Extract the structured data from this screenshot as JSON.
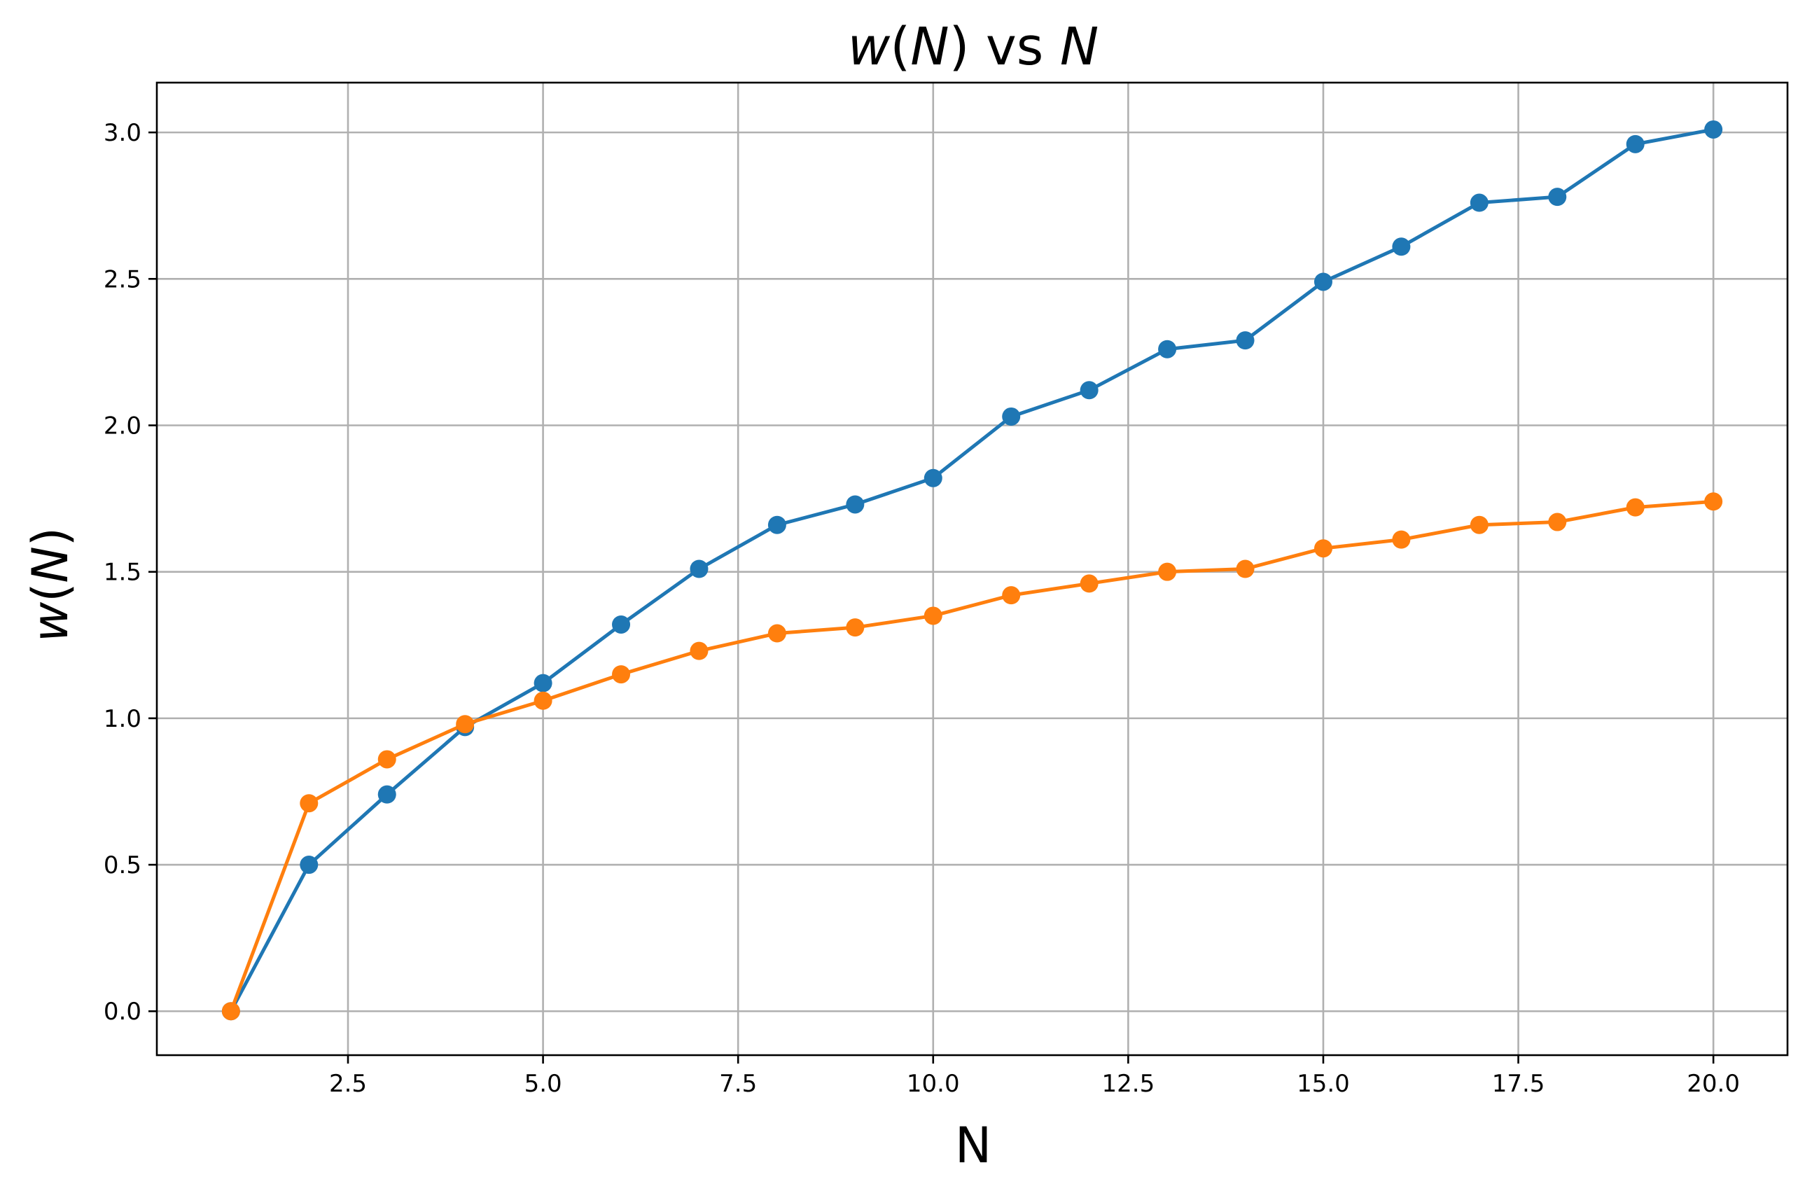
{
  "chart_data": {
    "type": "line",
    "title": "w(N) vs N",
    "title_parts": {
      "w": "w",
      "open": "(",
      "n": "N",
      "close": ")",
      "vs": " vs ",
      "n2": "N"
    },
    "xlabel": "N",
    "ylabel": "w(N)",
    "ylabel_parts": {
      "w": "w",
      "open": "(",
      "n": "N",
      "close": ")"
    },
    "xlim": [
      0.05,
      20.95
    ],
    "ylim": [
      -0.15,
      3.17
    ],
    "xticks": [
      2.5,
      5.0,
      7.5,
      10.0,
      12.5,
      15.0,
      17.5,
      20.0
    ],
    "xtick_labels": [
      "2.5",
      "5.0",
      "7.5",
      "10.0",
      "12.5",
      "15.0",
      "17.5",
      "20.0"
    ],
    "yticks": [
      0.0,
      0.5,
      1.0,
      1.5,
      2.0,
      2.5,
      3.0
    ],
    "ytick_labels": [
      "0.0",
      "0.5",
      "1.0",
      "1.5",
      "2.0",
      "2.5",
      "3.0"
    ],
    "grid": true,
    "legend": "none",
    "x": [
      1,
      2,
      3,
      4,
      5,
      6,
      7,
      8,
      9,
      10,
      11,
      12,
      13,
      14,
      15,
      16,
      17,
      18,
      19,
      20
    ],
    "series": [
      {
        "color": "#1f77b4",
        "values": [
          0.0,
          0.5,
          0.74,
          0.97,
          1.12,
          1.32,
          1.51,
          1.66,
          1.73,
          1.82,
          2.03,
          2.12,
          2.26,
          2.29,
          2.49,
          2.61,
          2.76,
          2.78,
          2.96,
          3.01
        ]
      },
      {
        "color": "#ff7f0e",
        "values": [
          0.0,
          0.71,
          0.86,
          0.98,
          1.06,
          1.15,
          1.23,
          1.29,
          1.31,
          1.35,
          1.42,
          1.46,
          1.5,
          1.51,
          1.58,
          1.61,
          1.66,
          1.67,
          1.72,
          1.74
        ]
      }
    ]
  }
}
